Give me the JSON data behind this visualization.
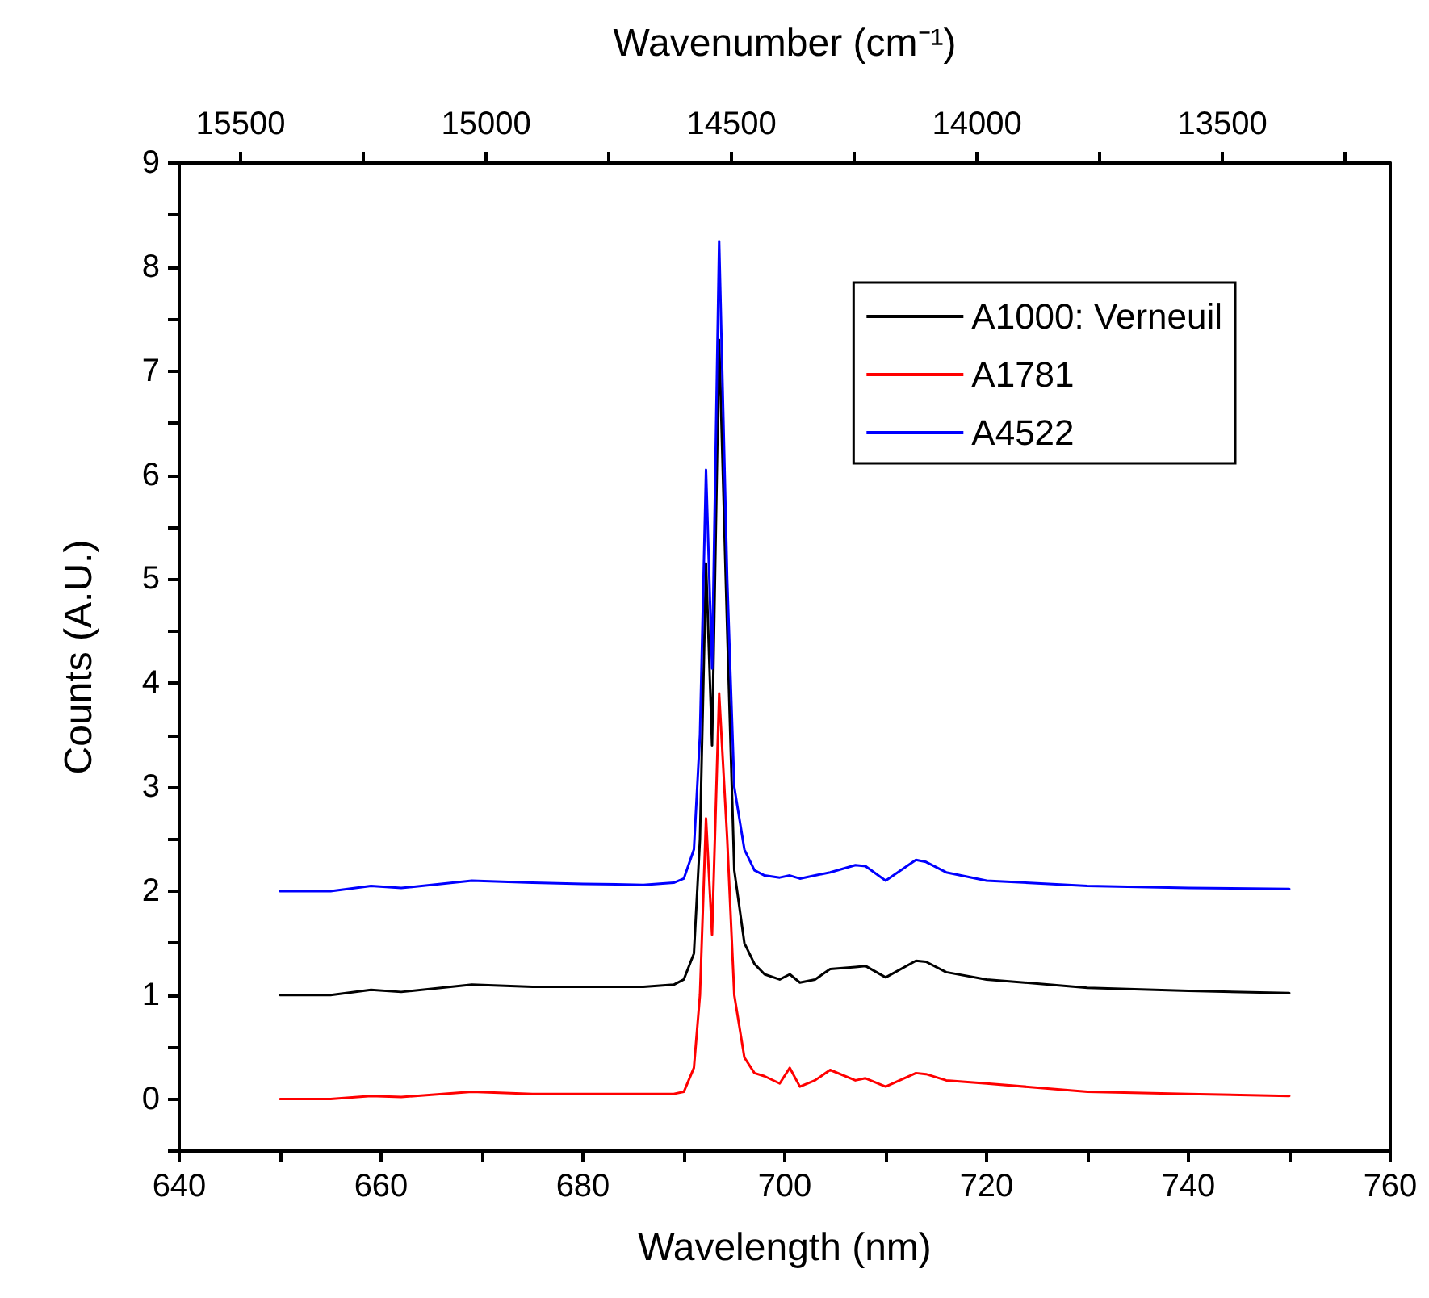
{
  "chart_data": {
    "type": "line",
    "xlabel": "Wavelength (nm)",
    "x2label": "Wavenumber (cm⁻¹)",
    "ylabel": "Counts (A.U.)",
    "xlim": [
      640,
      760
    ],
    "xticks": [
      640,
      {
        "value": 650,
        "label": null
      },
      660,
      {
        "value": 670,
        "label": null
      },
      680,
      {
        "value": 690,
        "label": null
      },
      700,
      {
        "value": 710,
        "label": null
      },
      720,
      {
        "value": 730,
        "label": null
      },
      740,
      {
        "value": 750,
        "label": null
      },
      760
    ],
    "x2lim": [
      15625,
      13158
    ],
    "x2ticks": [
      15500,
      {
        "value": 15250,
        "label": null
      },
      15000,
      {
        "value": 14750,
        "label": null
      },
      14500,
      {
        "value": 14250,
        "label": null
      },
      14000,
      {
        "value": 13750,
        "label": null
      },
      13500,
      {
        "value": 13250,
        "label": null
      }
    ],
    "ylim": [
      -0.5,
      9
    ],
    "yticks": [
      {
        "value": -0.5,
        "label": null
      },
      0,
      {
        "value": 0.5,
        "label": null
      },
      1,
      {
        "value": 1.5,
        "label": null
      },
      2,
      {
        "value": 2.5,
        "label": null
      },
      3,
      {
        "value": 3.5,
        "label": null
      },
      4,
      {
        "value": 4.5,
        "label": null
      },
      5,
      {
        "value": 5.5,
        "label": null
      },
      6,
      {
        "value": 6.5,
        "label": null
      },
      7,
      {
        "value": 7.5,
        "label": null
      },
      8,
      {
        "value": 8.5,
        "label": null
      },
      9
    ],
    "grid": false,
    "legend": "top right",
    "marker": "none",
    "line_style": "solid",
    "x": [
      650,
      655,
      659,
      662,
      669,
      675,
      680,
      686,
      689,
      690,
      691,
      691.6,
      692.2,
      692.8,
      693.5,
      694.3,
      695,
      696,
      697,
      698,
      699.5,
      700.5,
      701.5,
      703,
      704.5,
      707,
      708,
      710,
      713,
      714,
      716,
      720,
      730,
      740,
      750
    ],
    "series": [
      {
        "name": "A1000: Verneuil",
        "color": "#000000",
        "values": [
          1.0,
          1.0,
          1.05,
          1.03,
          1.1,
          1.08,
          1.08,
          1.08,
          1.1,
          1.15,
          1.4,
          2.5,
          5.15,
          3.4,
          7.3,
          4.5,
          2.2,
          1.5,
          1.3,
          1.2,
          1.15,
          1.2,
          1.12,
          1.15,
          1.25,
          1.27,
          1.28,
          1.17,
          1.33,
          1.32,
          1.22,
          1.15,
          1.07,
          1.04,
          1.02
        ]
      },
      {
        "name": "A1781",
        "color": "#ff0000",
        "values": [
          0.0,
          0.0,
          0.03,
          0.02,
          0.07,
          0.05,
          0.05,
          0.05,
          0.05,
          0.07,
          0.3,
          1.0,
          2.7,
          1.58,
          3.9,
          2.5,
          1.0,
          0.4,
          0.25,
          0.22,
          0.15,
          0.3,
          0.12,
          0.18,
          0.28,
          0.18,
          0.2,
          0.12,
          0.25,
          0.24,
          0.18,
          0.15,
          0.07,
          0.05,
          0.03
        ]
      },
      {
        "name": "A4522",
        "color": "#0000ff",
        "values": [
          2.0,
          2.0,
          2.05,
          2.03,
          2.1,
          2.08,
          2.07,
          2.06,
          2.08,
          2.12,
          2.4,
          3.5,
          6.05,
          4.14,
          8.25,
          5.0,
          3.0,
          2.4,
          2.2,
          2.15,
          2.13,
          2.15,
          2.12,
          2.15,
          2.18,
          2.25,
          2.24,
          2.1,
          2.3,
          2.28,
          2.18,
          2.1,
          2.05,
          2.03,
          2.02
        ]
      }
    ]
  }
}
